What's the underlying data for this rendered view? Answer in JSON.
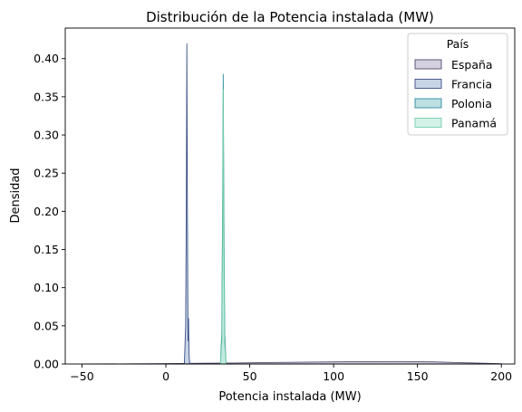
{
  "chart_data": {
    "type": "area",
    "title": "Distribución de la Potencia instalada (MW)",
    "xlabel": "Potencia instalada (MW)",
    "ylabel": "Densidad",
    "xlim": [
      -60,
      208
    ],
    "ylim": [
      0,
      0.44
    ],
    "xticks": [
      -50,
      0,
      50,
      100,
      150,
      200
    ],
    "xtick_labels": [
      "−50",
      "0",
      "50",
      "100",
      "150",
      "200"
    ],
    "yticks": [
      0.0,
      0.05,
      0.1,
      0.15,
      0.2,
      0.25,
      0.3,
      0.35,
      0.4
    ],
    "ytick_labels": [
      "0.00",
      "0.05",
      "0.10",
      "0.15",
      "0.20",
      "0.25",
      "0.30",
      "0.35",
      "0.40"
    ],
    "grid": false,
    "legend": {
      "title": "País",
      "placement": "top-right"
    },
    "series": [
      {
        "name": "España",
        "fill": "#c5c0d1",
        "stroke": "#4e4a6e",
        "x": [
          -50,
          -20,
          0,
          20,
          40,
          60,
          80,
          100,
          120,
          140,
          160,
          180,
          200
        ],
        "y": [
          0.0,
          0.0002,
          0.0005,
          0.0009,
          0.0013,
          0.0018,
          0.0023,
          0.0028,
          0.0031,
          0.0032,
          0.0027,
          0.0015,
          0.0004
        ]
      },
      {
        "name": "Francia",
        "fill": "#b4c6dd",
        "stroke": "#3a4f86",
        "x": [
          11.0,
          11.8,
          12.2,
          12.5,
          12.8,
          13.2,
          13.5,
          13.7,
          13.9,
          14.2
        ],
        "y": [
          0.0,
          0.05,
          0.22,
          0.42,
          0.22,
          0.03,
          0.06,
          0.03,
          0.01,
          0.0
        ]
      },
      {
        "name": "Polonia",
        "fill": "#a6d4da",
        "stroke": "#2f8a9a",
        "x": [
          32.5,
          33.3,
          33.8,
          34.2,
          34.6,
          35.1,
          35.9
        ],
        "y": [
          0.0,
          0.04,
          0.2,
          0.38,
          0.2,
          0.04,
          0.0
        ]
      },
      {
        "name": "Panamá",
        "fill": "#c4eedf",
        "stroke": "#72cfa8",
        "x": [
          32.5,
          33.4,
          33.9,
          34.2,
          34.5,
          35.0,
          35.9
        ],
        "y": [
          0.0,
          0.03,
          0.18,
          0.36,
          0.18,
          0.03,
          0.0
        ]
      }
    ]
  }
}
